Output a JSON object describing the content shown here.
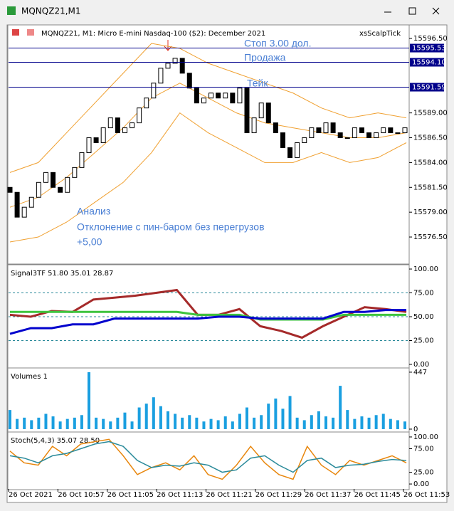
{
  "window": {
    "title": "MQNQZ21,M1"
  },
  "chart_data": [
    {
      "type": "candlestick",
      "title": "MQNQZ21, M1:  Micro E-mini Nasdaq-100 ($2): December 2021",
      "indicator": "xsScalpTick",
      "open": [
        15581.5,
        15581,
        15578.5,
        15579.5,
        15580.5,
        15582,
        15583,
        15581.5,
        15581,
        15582.5,
        15583.5,
        15585,
        15586.5,
        15586,
        15587.5,
        15588.5,
        15587,
        15587.5,
        15588,
        15589.5,
        15590.5,
        15592,
        15593.5,
        15594,
        15594.5,
        15593,
        15591.5,
        15590,
        15590.5,
        15591,
        15590.5,
        15591,
        15590,
        15591.5,
        15587,
        15588.5,
        15590,
        15588,
        15587,
        15585.5,
        15584.5,
        15586,
        15586.5,
        15587.5,
        15587,
        15588,
        15587,
        15586.5,
        15586.5,
        15587.5,
        15587,
        15586.5,
        15587,
        15587.5,
        15587,
        15587
      ],
      "close": [
        15581,
        15578.5,
        15579.5,
        15580.5,
        15582,
        15583,
        15581.5,
        15581,
        15582.5,
        15583.5,
        15585,
        15586.5,
        15586,
        15587.5,
        15588.5,
        15587,
        15587.5,
        15588,
        15589.5,
        15590.5,
        15592,
        15593.5,
        15594,
        15594.5,
        15593,
        15591.5,
        15590,
        15590.5,
        15591,
        15590.5,
        15591,
        15590,
        15591.5,
        15587,
        15588.5,
        15590,
        15588,
        15587,
        15585.5,
        15584.5,
        15586,
        15586.5,
        15587.5,
        15587,
        15588,
        15587,
        15586.5,
        15586.5,
        15587.5,
        15587,
        15586.5,
        15587,
        15587.5,
        15587,
        15587,
        15587.5
      ],
      "bands": [
        {
          "color": "#f0a030",
          "values": [
            15583,
            15584,
            15587,
            15590,
            15593,
            15596,
            15595.5,
            15594,
            15593,
            15592,
            15591,
            15589.5,
            15588.5,
            15589,
            15588.5
          ]
        },
        {
          "color": "#f0a030",
          "values": [
            15579.5,
            15580.5,
            15582.5,
            15585,
            15587.5,
            15590.5,
            15592,
            15590.5,
            15589,
            15588,
            15587.5,
            15587,
            15586.5,
            15586.5,
            15587
          ]
        },
        {
          "color": "#f0a030",
          "values": [
            15576,
            15576.5,
            15578,
            15580,
            15582,
            15585,
            15589,
            15587,
            15585.5,
            15584,
            15584,
            15585,
            15584,
            15584.5,
            15586
          ]
        }
      ],
      "levels": [
        15595.53,
        {
          "value": 15594.1,
          "label": "15594.10"
        },
        15591.59
      ],
      "level_color": "#00008b",
      "annotations": [
        "Стоп 3.00 дол.",
        "Продажа",
        "Тейк",
        "Анализ",
        "Отклонение с пин-баром без перегрузов",
        "+5,00"
      ],
      "ylim": [
        15573.85,
        15597.72
      ],
      "yticks": [
        {
          "value": 15596.5,
          "label": "15596.50"
        },
        {
          "value": 15589,
          "label": "15589.00"
        },
        {
          "value": 15586.5,
          "label": "15586.50"
        },
        {
          "value": 15584,
          "label": "15584.00"
        },
        {
          "value": 15581.5,
          "label": "15581.50"
        },
        {
          "value": 15579,
          "label": "15579.00"
        },
        {
          "value": 15576.5,
          "label": "15576.50"
        }
      ]
    },
    {
      "type": "line",
      "title": "Signal3TF 51.80 35.01 28.87",
      "ylim": [
        -3,
        103
      ],
      "yticks": [
        {
          "value": 100,
          "label": "100.00"
        },
        {
          "value": 75,
          "label": "75.00"
        },
        {
          "value": 50,
          "label": "50.00"
        },
        {
          "value": 25,
          "label": "25.00"
        },
        {
          "value": 0,
          "label": "0.00"
        }
      ],
      "series": [
        {
          "color": "#a52a2a",
          "values": [
            52,
            50,
            56,
            55,
            68,
            70,
            72,
            75,
            78,
            52,
            52,
            58,
            40,
            35,
            28,
            40,
            50,
            60,
            58,
            55
          ]
        },
        {
          "color": "#3ec43e",
          "values": [
            55,
            55,
            55,
            55,
            55,
            55,
            55,
            55,
            55,
            52,
            52,
            52,
            47,
            47,
            47,
            47,
            52,
            52,
            52,
            52
          ]
        },
        {
          "color": "#0000cd",
          "values": [
            32,
            38,
            38,
            42,
            42,
            48,
            48,
            48,
            48,
            48,
            50,
            50,
            48,
            48,
            48,
            48,
            55,
            55,
            57,
            57
          ]
        }
      ]
    },
    {
      "type": "bar",
      "title": "Volumes 1",
      "color": "#1a9fe0",
      "ylim": [
        -17,
        469
      ],
      "yticks": [
        447,
        0
      ],
      "values": [
        150,
        80,
        90,
        70,
        90,
        120,
        100,
        60,
        80,
        90,
        110,
        447,
        90,
        80,
        60,
        90,
        130,
        60,
        170,
        200,
        250,
        180,
        140,
        120,
        90,
        110,
        90,
        60,
        80,
        70,
        100,
        60,
        120,
        170,
        90,
        110,
        200,
        240,
        160,
        260,
        90,
        70,
        110,
        140,
        100,
        90,
        340,
        150,
        80,
        100,
        90,
        110,
        120,
        80,
        70,
        60
      ]
    },
    {
      "type": "line",
      "title": "Stoch(5,4,3) 35.07 28.50",
      "ylim": [
        -10.5,
        107.5
      ],
      "yticks": [
        {
          "value": 100,
          "label": "100.00"
        },
        {
          "value": 75,
          "label": "75.00"
        },
        {
          "value": 25,
          "label": "25.00"
        },
        {
          "value": 0,
          "label": "0.00"
        }
      ],
      "series": [
        {
          "color": "#e8860c",
          "values": [
            70,
            45,
            40,
            80,
            60,
            85,
            90,
            95,
            60,
            20,
            35,
            45,
            30,
            60,
            20,
            10,
            40,
            80,
            45,
            20,
            10,
            80,
            40,
            20,
            50,
            40,
            50,
            60,
            45
          ]
        },
        {
          "color": "#2a8a9a",
          "values": [
            60,
            55,
            45,
            60,
            65,
            75,
            85,
            90,
            80,
            50,
            35,
            40,
            38,
            45,
            40,
            25,
            30,
            55,
            60,
            40,
            25,
            50,
            55,
            35,
            40,
            42,
            48,
            52,
            50
          ]
        }
      ]
    }
  ],
  "time_axis": {
    "labels": [
      "26 Oct 2021",
      "26 Oct 10:57",
      "26 Oct 11:05",
      "26 Oct 11:13",
      "26 Oct 11:21",
      "26 Oct 11:29",
      "26 Oct 11:37",
      "26 Oct 11:45",
      "26 Oct 11:53"
    ]
  }
}
